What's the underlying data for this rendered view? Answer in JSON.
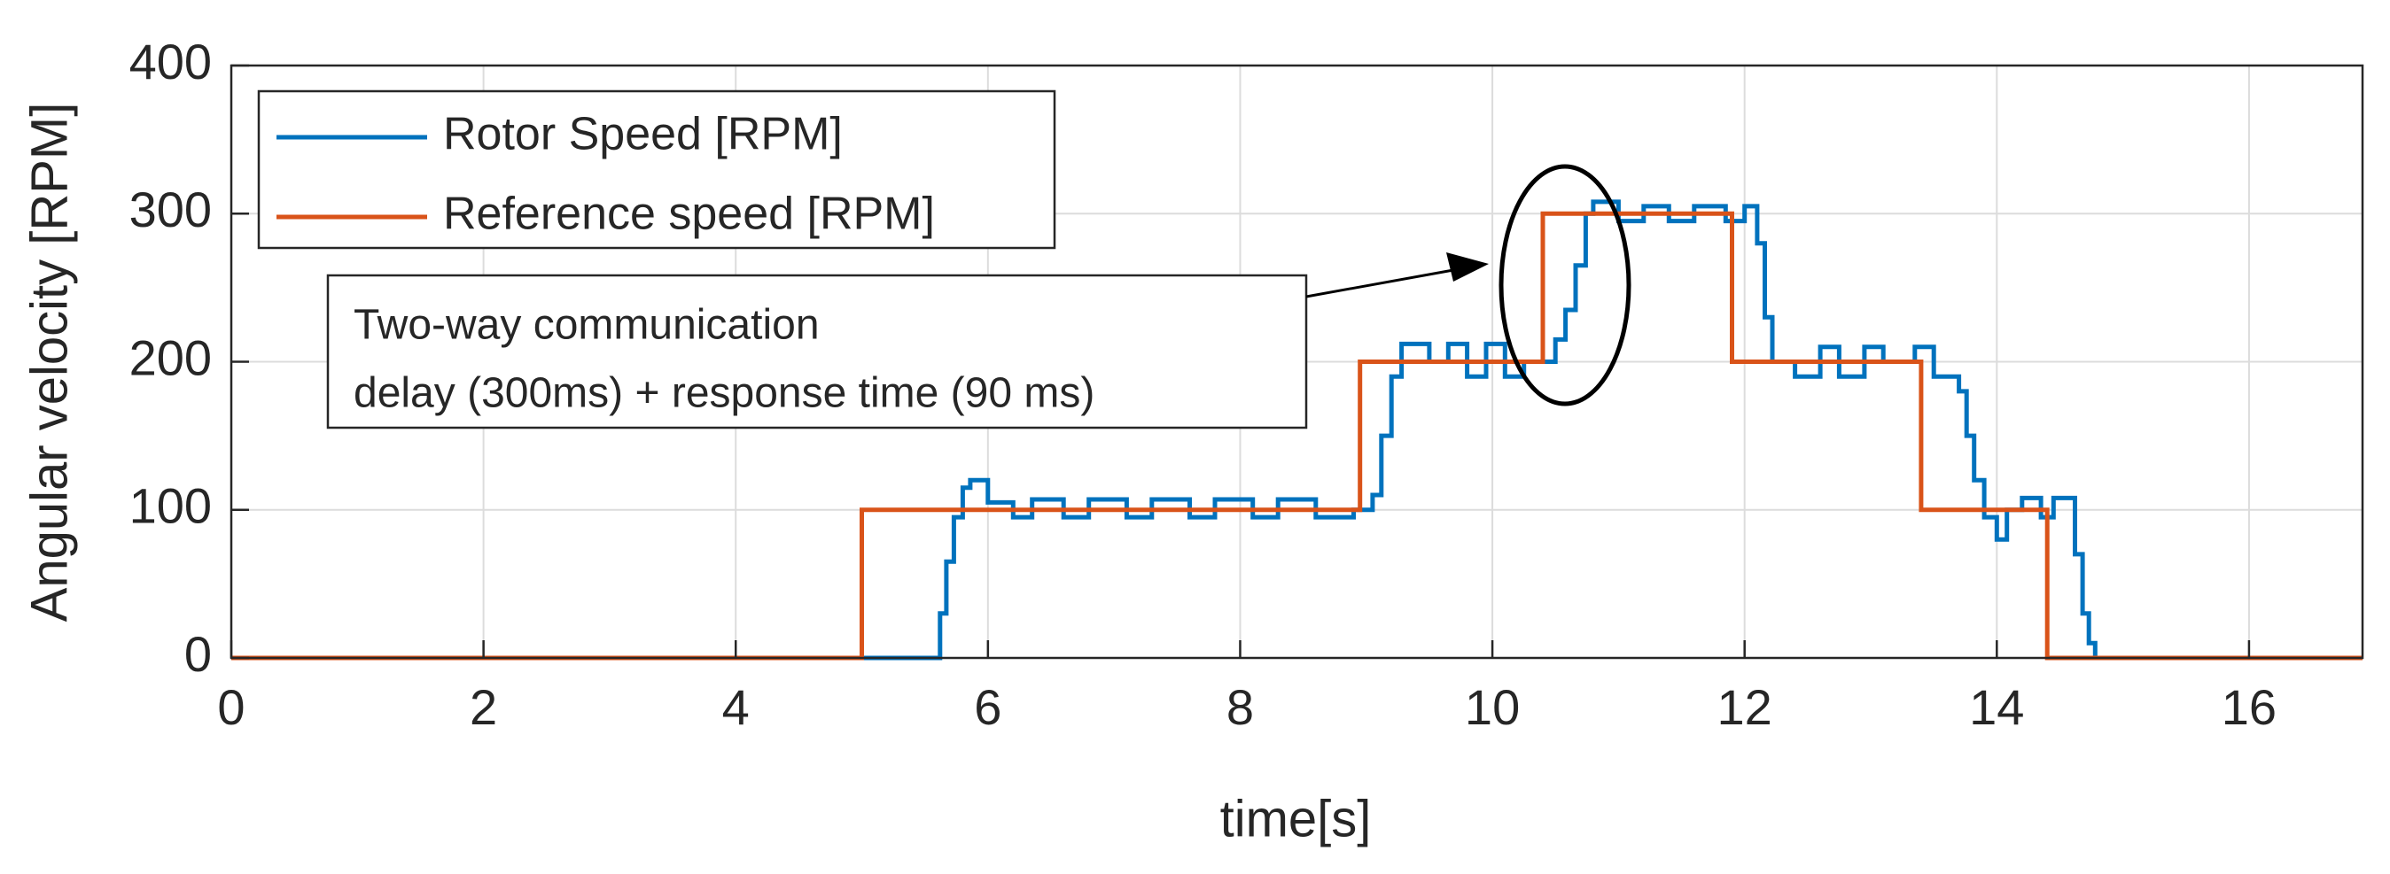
{
  "chart_data": {
    "type": "line",
    "xlabel": "time[s]",
    "ylabel": "Angular velocity [RPM]",
    "xlim": [
      0,
      16.9
    ],
    "ylim": [
      0,
      400
    ],
    "xticks": [
      0,
      2,
      4,
      6,
      8,
      10,
      12,
      14,
      16
    ],
    "yticks": [
      0,
      100,
      200,
      300,
      400
    ],
    "grid": true,
    "legend": "upper left",
    "annotation": [
      "Two-way communication",
      "delay (300ms) + response time (90 ms)"
    ],
    "series": [
      {
        "name": "Rotor Speed [RPM]",
        "color": "#0072bd",
        "x": [
          0,
          5.62,
          5.62,
          5.67,
          5.67,
          5.73,
          5.73,
          5.8,
          5.8,
          5.86,
          5.86,
          6.0,
          6.0,
          6.2,
          6.2,
          6.35,
          6.35,
          6.6,
          6.6,
          6.8,
          6.8,
          7.1,
          7.1,
          7.3,
          7.3,
          7.6,
          7.6,
          7.8,
          7.8,
          8.1,
          8.1,
          8.3,
          8.3,
          8.6,
          8.6,
          8.9,
          8.9,
          9.05,
          9.05,
          9.12,
          9.12,
          9.2,
          9.2,
          9.28,
          9.28,
          9.5,
          9.5,
          9.65,
          9.65,
          9.8,
          9.8,
          9.95,
          9.95,
          10.1,
          10.1,
          10.25,
          10.25,
          10.5,
          10.5,
          10.58,
          10.58,
          10.66,
          10.66,
          10.74,
          10.74,
          10.8,
          10.8,
          11.0,
          11.0,
          11.2,
          11.2,
          11.4,
          11.4,
          11.6,
          11.6,
          11.85,
          11.85,
          12.0,
          12.0,
          12.1,
          12.1,
          12.16,
          12.16,
          12.22,
          12.22,
          12.4,
          12.4,
          12.6,
          12.6,
          12.75,
          12.75,
          12.95,
          12.95,
          13.1,
          13.1,
          13.35,
          13.35,
          13.5,
          13.5,
          13.7,
          13.7,
          13.76,
          13.76,
          13.82,
          13.82,
          13.9,
          13.9,
          14.0,
          14.0,
          14.08,
          14.08,
          14.2,
          14.2,
          14.35,
          14.35,
          14.45,
          14.45,
          14.62,
          14.62,
          14.68,
          14.68,
          14.73,
          14.73,
          14.78,
          14.78,
          16.9
        ],
        "values": [
          0,
          0,
          30,
          30,
          65,
          65,
          95,
          95,
          115,
          115,
          120,
          120,
          105,
          105,
          95,
          95,
          107,
          107,
          95,
          95,
          107,
          107,
          95,
          95,
          107,
          107,
          95,
          95,
          107,
          107,
          95,
          95,
          107,
          107,
          95,
          95,
          100,
          100,
          110,
          110,
          150,
          150,
          190,
          190,
          212,
          212,
          200,
          200,
          212,
          212,
          190,
          190,
          212,
          212,
          190,
          190,
          200,
          200,
          215,
          215,
          235,
          235,
          265,
          265,
          300,
          300,
          308,
          308,
          295,
          295,
          305,
          305,
          295,
          295,
          305,
          305,
          295,
          295,
          305,
          305,
          280,
          280,
          230,
          230,
          200,
          200,
          190,
          190,
          210,
          210,
          190,
          190,
          210,
          210,
          200,
          200,
          210,
          210,
          190,
          190,
          180,
          180,
          150,
          150,
          120,
          120,
          95,
          95,
          80,
          80,
          100,
          100,
          108,
          108,
          95,
          95,
          108,
          108,
          70,
          70,
          30,
          30,
          10,
          10,
          0,
          0
        ]
      },
      {
        "name": "Reference speed [RPM]",
        "color": "#d95319",
        "x": [
          0,
          5,
          5,
          8.95,
          8.95,
          10.4,
          10.4,
          11.9,
          11.9,
          13.4,
          13.4,
          14.4,
          14.4,
          16.9
        ],
        "values": [
          0,
          0,
          100,
          100,
          200,
          200,
          300,
          300,
          200,
          200,
          100,
          100,
          0,
          0
        ]
      }
    ]
  }
}
